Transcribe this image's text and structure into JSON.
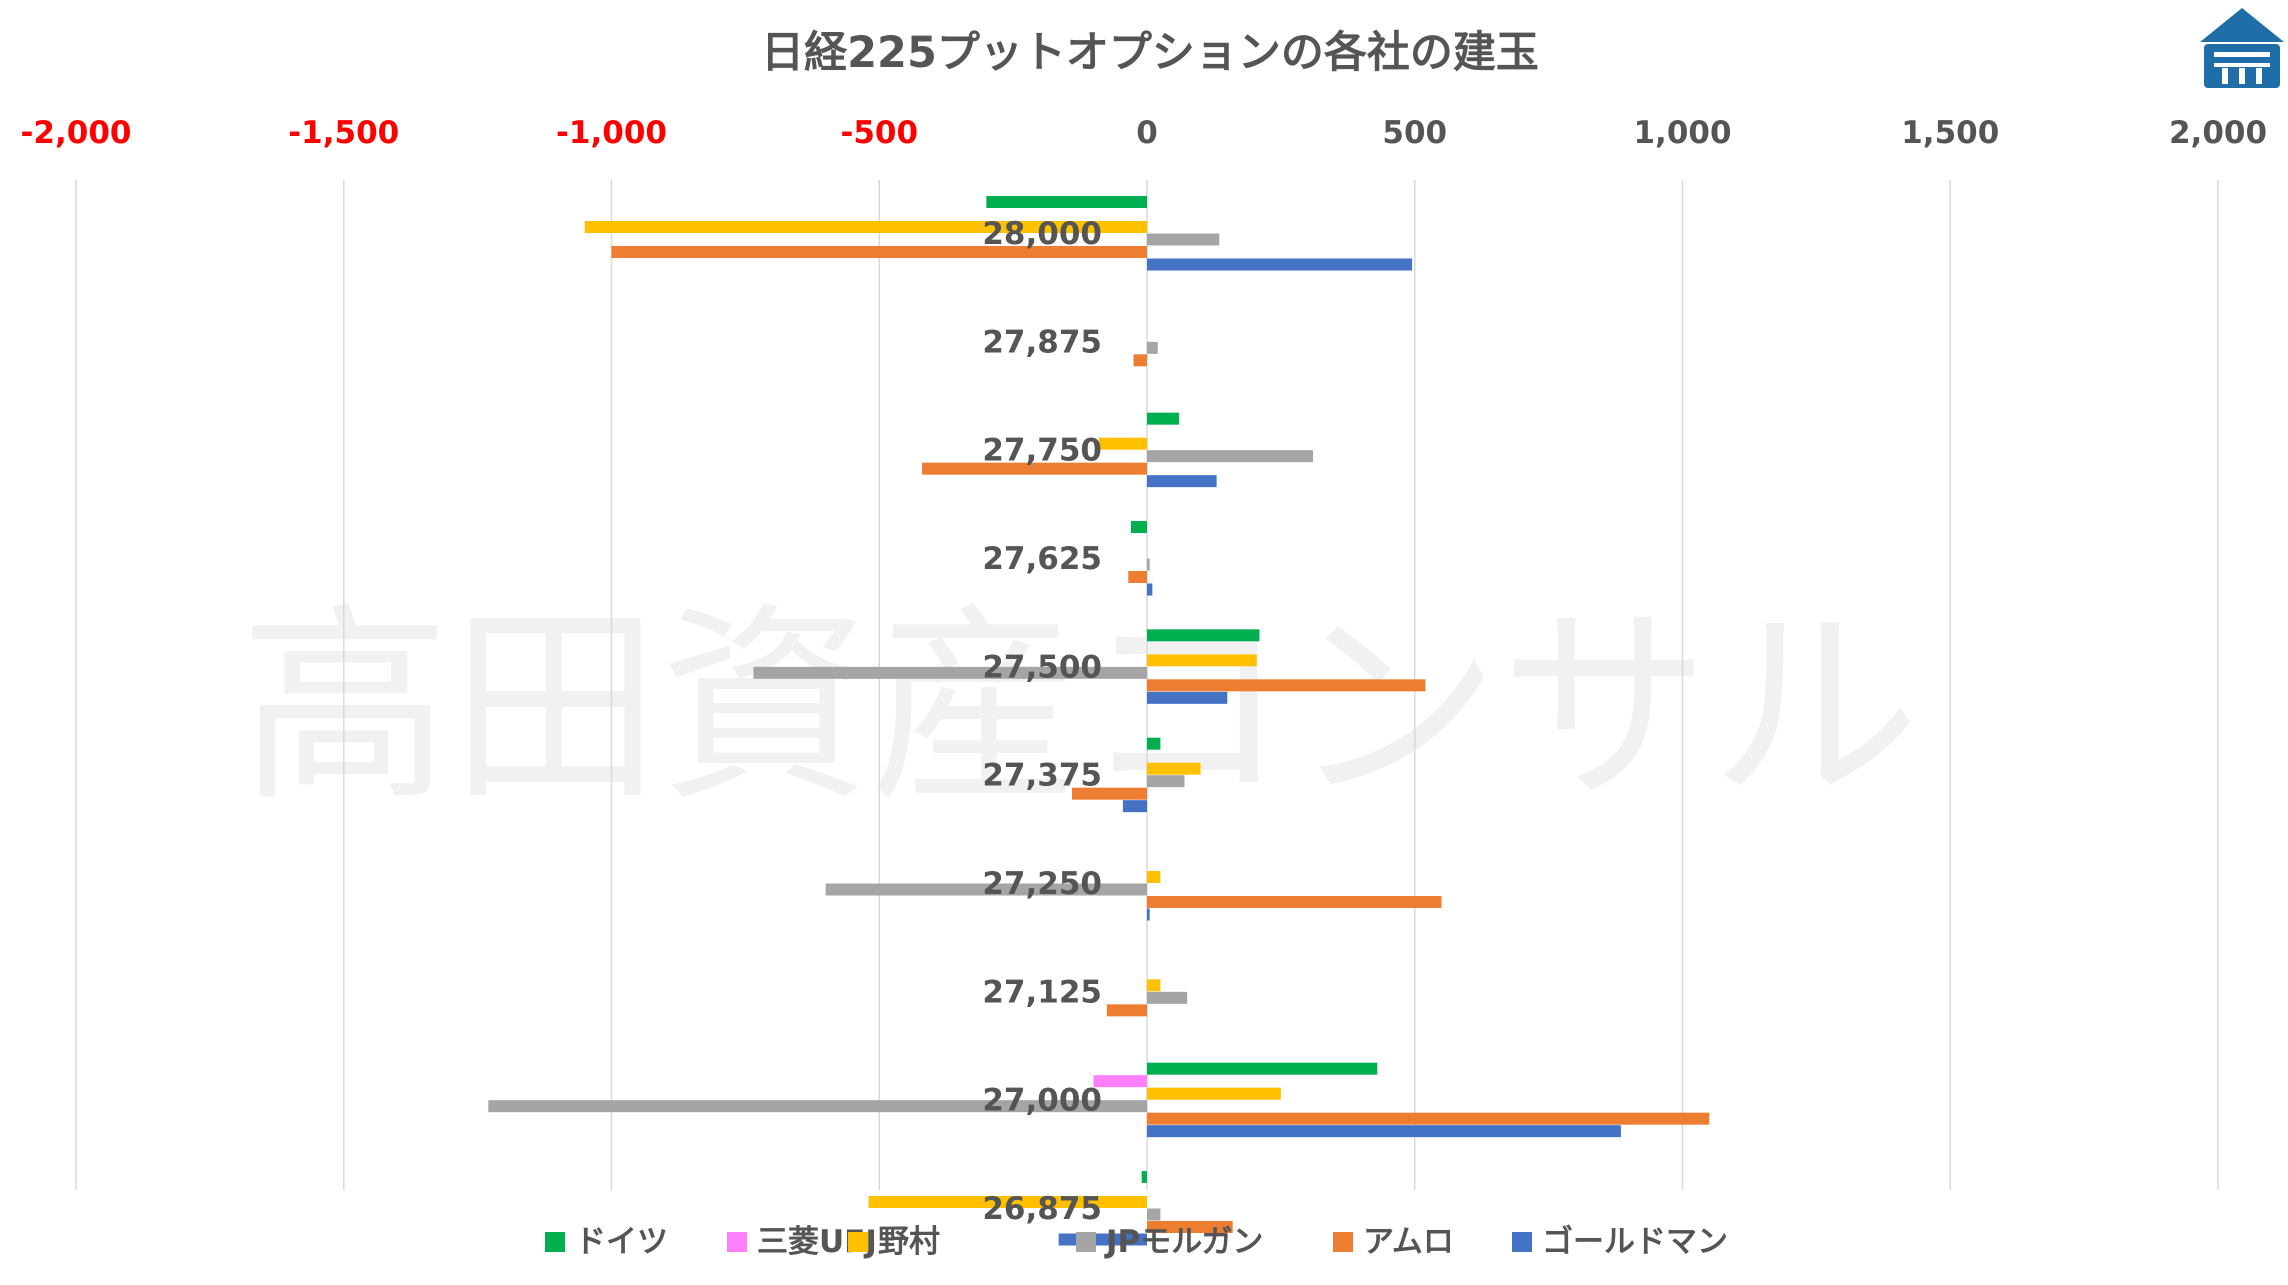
{
  "chart_data": {
    "type": "bar",
    "orientation": "horizontal",
    "title": "日経225プットオプションの各社の建玉",
    "watermark": "高田資産コンサル",
    "xlim": [
      -2000,
      2000
    ],
    "x_ticks": [
      -2000,
      -1500,
      -1000,
      -500,
      0,
      500,
      1000,
      1500,
      2000
    ],
    "x_tick_labels": [
      "-2,000",
      "-1,500",
      "-1,000",
      "-500",
      "0",
      "500",
      "1,000",
      "1,500",
      "2,000"
    ],
    "grid": "vertical",
    "legend_position": "bottom",
    "categories": [
      "28,000",
      "27,875",
      "27,750",
      "27,625",
      "27,500",
      "27,375",
      "27,250",
      "27,125",
      "27,000",
      "26,875"
    ],
    "series": [
      {
        "name": "ドイツ",
        "color": "#00b050",
        "values": [
          -300,
          0,
          60,
          -30,
          210,
          25,
          0,
          0,
          430,
          -10
        ]
      },
      {
        "name": "三菱UFJ",
        "color": "#ff80ff",
        "values": [
          0,
          0,
          0,
          0,
          0,
          0,
          0,
          0,
          -100,
          0
        ]
      },
      {
        "name": "野村",
        "color": "#ffc000",
        "values": [
          -1050,
          0,
          -90,
          0,
          205,
          100,
          25,
          25,
          250,
          -520
        ]
      },
      {
        "name": "JPモルガン",
        "color": "#a5a5a5",
        "values": [
          135,
          20,
          310,
          5,
          -735,
          70,
          -600,
          75,
          -1230,
          25
        ]
      },
      {
        "name": "アムロ",
        "color": "#ed7d31",
        "values": [
          -1000,
          -25,
          -420,
          -35,
          520,
          -140,
          550,
          -75,
          1050,
          160
        ]
      },
      {
        "name": "ゴールドマン",
        "color": "#4472c4",
        "values": [
          495,
          0,
          130,
          10,
          150,
          -45,
          5,
          0,
          885,
          -165
        ]
      }
    ]
  },
  "colors": {
    "negative_tick": "#ff0000",
    "positive_tick": "#555555",
    "gridline": "#d9d9d9",
    "logo": "#1f6ea8"
  },
  "logo_icon": "temple-logo-icon"
}
